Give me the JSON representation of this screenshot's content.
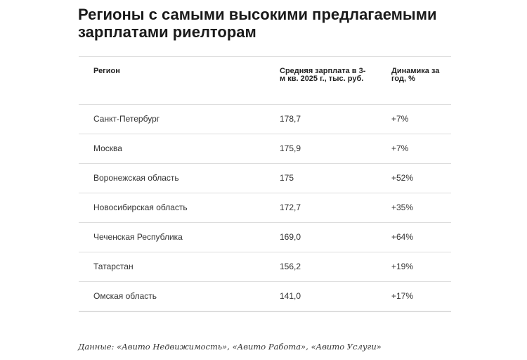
{
  "title": "Регионы с самыми высокими предлагаемыми зарплатами риелторам",
  "table": {
    "headers": [
      "Регион",
      "Средняя зарплата в 3-м кв. 2025 г., тыс. руб.",
      "Динамика за год, %"
    ],
    "rows": [
      [
        "Санкт-Петербург",
        "178,7",
        "+7%"
      ],
      [
        "Москва",
        "175,9",
        "+7%"
      ],
      [
        "Воронежская область",
        "175",
        "+52%"
      ],
      [
        "Новосибирская область",
        "172,7",
        "+35%"
      ],
      [
        "Чеченская Республика",
        "169,0",
        "+64%"
      ],
      [
        "Татарстан",
        "156,2",
        "+19%"
      ],
      [
        "Омская область",
        "141,0",
        "+17%"
      ]
    ]
  },
  "note": "Данные: «Авито Недвижимость», «Авито Работа», «Авито Услуги»"
}
